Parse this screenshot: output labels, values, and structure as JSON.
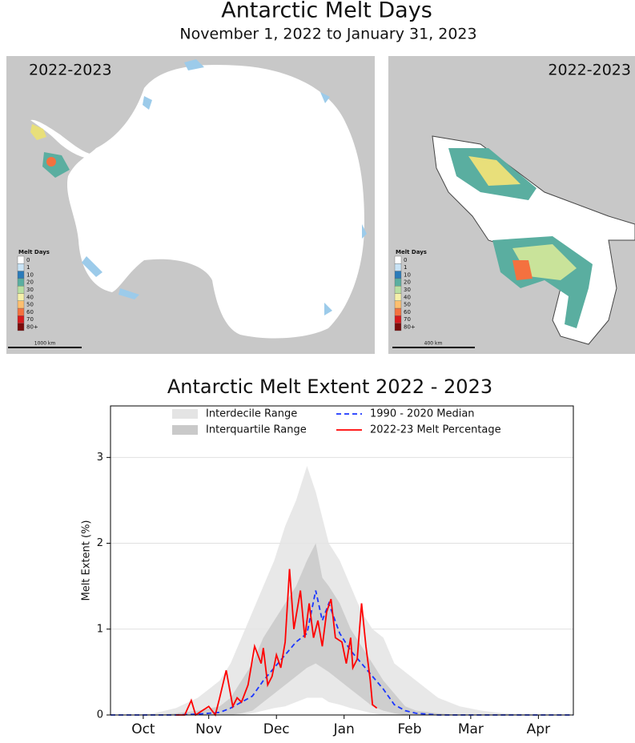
{
  "header": {
    "title": "Antarctic Melt Days",
    "subtitle": "November 1, 2022 to January 31, 2023"
  },
  "maps": [
    {
      "label": "2022-2023",
      "legend_title": "Melt Days",
      "scale": "1000 km"
    },
    {
      "label": "2022-2023",
      "legend_title": "Melt Days",
      "scale": "400 km"
    }
  ],
  "map_legend": [
    {
      "label": "0",
      "color": "#ffffff"
    },
    {
      "label": "1",
      "color": "#c9e4f6"
    },
    {
      "label": "10",
      "color": "#2b7bb9"
    },
    {
      "label": "20",
      "color": "#5aaea0"
    },
    {
      "label": "30",
      "color": "#b9dfa2"
    },
    {
      "label": "40",
      "color": "#f6f1a9"
    },
    {
      "label": "50",
      "color": "#fdbf6f"
    },
    {
      "label": "60",
      "color": "#f4713f"
    },
    {
      "label": "70",
      "color": "#d7191c"
    },
    {
      "label": "80+",
      "color": "#7a0c0c"
    }
  ],
  "chart_data": {
    "type": "line",
    "title": "Antarctic Melt Extent 2022 - 2023",
    "ylabel": "Melt Extent (%)",
    "x": [
      0,
      10,
      20,
      30,
      40,
      50,
      55,
      60,
      65,
      70,
      75,
      80,
      85,
      90,
      94,
      97,
      100,
      105,
      110,
      115,
      120,
      125,
      130,
      135,
      140,
      150,
      160,
      170,
      180,
      190,
      200,
      212
    ],
    "xlim": [
      0,
      212
    ],
    "xticks": [
      {
        "value": 15,
        "label": "Oct"
      },
      {
        "value": 45,
        "label": "Nov"
      },
      {
        "value": 76,
        "label": "Dec"
      },
      {
        "value": 107,
        "label": "Jan"
      },
      {
        "value": 137,
        "label": "Feb"
      },
      {
        "value": 165,
        "label": "Mar"
      },
      {
        "value": 196,
        "label": "Apr"
      }
    ],
    "ylim": [
      0,
      3.6
    ],
    "yticks": [
      0,
      1,
      2,
      3
    ],
    "grid": true,
    "legend": "upper center",
    "series": [
      {
        "name": "Interdecile Range",
        "color": "#e4e4e4",
        "lower": [
          0,
          0,
          0,
          0,
          0,
          0,
          0,
          0,
          0.02,
          0.05,
          0.08,
          0.1,
          0.15,
          0.2,
          0.2,
          0.2,
          0.15,
          0.12,
          0.08,
          0.05,
          0.02,
          0,
          0,
          0,
          0,
          0,
          0,
          0,
          0,
          0,
          0,
          0
        ],
        "upper": [
          0,
          0,
          0.02,
          0.08,
          0.2,
          0.4,
          0.6,
          0.9,
          1.2,
          1.5,
          1.8,
          2.2,
          2.5,
          2.9,
          2.6,
          2.3,
          2.0,
          1.8,
          1.5,
          1.2,
          1.0,
          0.9,
          0.6,
          0.5,
          0.4,
          0.2,
          0.1,
          0.05,
          0.02,
          0.01,
          0,
          0
        ]
      },
      {
        "name": "Interquartile Range",
        "color": "#c9c9c9",
        "lower": [
          0,
          0,
          0,
          0,
          0,
          0,
          0,
          0.02,
          0.05,
          0.15,
          0.25,
          0.35,
          0.45,
          0.55,
          0.6,
          0.55,
          0.5,
          0.4,
          0.3,
          0.2,
          0.1,
          0.05,
          0.02,
          0,
          0,
          0,
          0,
          0,
          0,
          0,
          0,
          0
        ],
        "upper": [
          0,
          0,
          0,
          0.02,
          0.05,
          0.1,
          0.2,
          0.4,
          0.6,
          0.9,
          1.1,
          1.3,
          1.5,
          1.8,
          2.0,
          1.6,
          1.5,
          1.3,
          1.0,
          0.8,
          0.6,
          0.4,
          0.25,
          0.1,
          0.05,
          0.02,
          0,
          0,
          0,
          0,
          0,
          0
        ]
      },
      {
        "name": "1990 - 2020 Median",
        "color": "#1a36ff",
        "dashed": true,
        "values": [
          0,
          0,
          0,
          0,
          0.01,
          0.03,
          0.08,
          0.15,
          0.22,
          0.4,
          0.55,
          0.7,
          0.85,
          0.95,
          1.45,
          1.1,
          1.3,
          0.95,
          0.75,
          0.6,
          0.45,
          0.3,
          0.12,
          0.05,
          0.02,
          0,
          0,
          0,
          0,
          0,
          0,
          0
        ]
      },
      {
        "name": "2022-23 Melt Percentage",
        "color": "#ff0000",
        "x": [
          30,
          34,
          37,
          39,
          42,
          45,
          48,
          50,
          53,
          56,
          58,
          60,
          63,
          66,
          69,
          70,
          72,
          74,
          76,
          78,
          80,
          82,
          84,
          87,
          89,
          91,
          93,
          95,
          97,
          99,
          101,
          103,
          106,
          108,
          110,
          111,
          113,
          115,
          117,
          119,
          120,
          122
        ],
        "values": [
          0,
          0,
          0.17,
          0,
          0.05,
          0.1,
          0,
          0.2,
          0.52,
          0.1,
          0.2,
          0.15,
          0.35,
          0.8,
          0.6,
          0.78,
          0.35,
          0.45,
          0.7,
          0.55,
          0.85,
          1.7,
          1.0,
          1.45,
          0.9,
          1.3,
          0.9,
          1.1,
          0.8,
          1.2,
          1.35,
          0.9,
          0.85,
          0.6,
          0.9,
          0.55,
          0.65,
          1.3,
          0.8,
          0.4,
          0.12,
          0.08
        ]
      }
    ]
  }
}
